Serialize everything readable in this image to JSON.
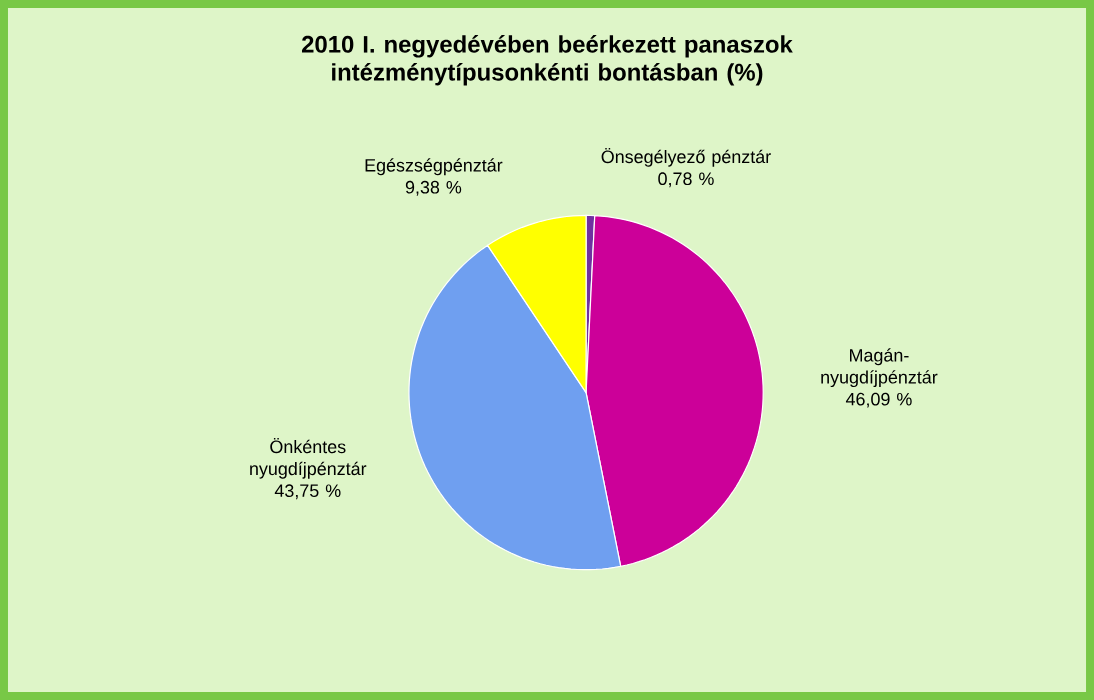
{
  "chart_data": {
    "type": "pie",
    "title": "2010 I. negyedévében beérkezett panaszok intézménytípusonkénti bontásban (%)",
    "categories": [
      "Önsegélyező pénztár",
      "Magán-nyugdíjpénztár",
      "Önkéntes nyugdíjpénztár",
      "Egészségpénztár"
    ],
    "values": [
      0.78,
      46.09,
      43.75,
      9.38
    ],
    "value_labels": [
      "0,78 %",
      "46,09 %",
      "43,75 %",
      "9,38 %"
    ],
    "colors": [
      "#7030a0",
      "#cc0099",
      "#6f9ff0",
      "#ffff00"
    ]
  }
}
